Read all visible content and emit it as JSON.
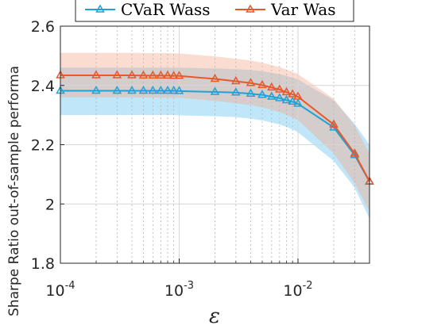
{
  "chart_data": {
    "type": "line",
    "xscale": "log",
    "xlim": [
      0.0001,
      0.04
    ],
    "ylim": [
      1.8,
      2.6
    ],
    "xlabel": "ε",
    "ylabel": "Sharpe Ratio out-of-sample performa",
    "xtick_labels": [
      {
        "value": 0.0001,
        "mantissa": "10",
        "exp": "-4"
      },
      {
        "value": 0.001,
        "mantissa": "10",
        "exp": "-3"
      },
      {
        "value": 0.01,
        "mantissa": "10",
        "exp": "-2"
      }
    ],
    "ytick_labels": [
      "1.8",
      "2",
      "2.2",
      "2.4",
      "2.6"
    ],
    "yticks": [
      1.8,
      2.0,
      2.2,
      2.4,
      2.6
    ],
    "grid": true,
    "legend_position": "top",
    "x": [
      0.0001,
      0.0002,
      0.0003,
      0.0004,
      0.0005,
      0.0006,
      0.0007,
      0.0008,
      0.0009,
      0.001,
      0.002,
      0.003,
      0.004,
      0.005,
      0.006,
      0.007,
      0.008,
      0.009,
      0.01,
      0.02,
      0.03,
      0.04
    ],
    "series": [
      {
        "name": "CVaR Wass",
        "color": "#1fa2d8",
        "band_color": "#5fc3f1",
        "values": [
          2.382,
          2.382,
          2.382,
          2.382,
          2.382,
          2.382,
          2.382,
          2.382,
          2.382,
          2.381,
          2.378,
          2.376,
          2.372,
          2.368,
          2.362,
          2.357,
          2.35,
          2.345,
          2.338,
          2.258,
          2.165,
          2.075
        ],
        "lower": [
          2.3,
          2.3,
          2.3,
          2.3,
          2.3,
          2.3,
          2.3,
          2.3,
          2.3,
          2.299,
          2.296,
          2.293,
          2.288,
          2.282,
          2.275,
          2.268,
          2.26,
          2.252,
          2.242,
          2.145,
          2.055,
          1.95
        ],
        "upper": [
          2.46,
          2.46,
          2.46,
          2.46,
          2.46,
          2.46,
          2.46,
          2.46,
          2.46,
          2.46,
          2.457,
          2.455,
          2.452,
          2.448,
          2.443,
          2.438,
          2.432,
          2.426,
          2.42,
          2.35,
          2.27,
          2.2
        ]
      },
      {
        "name": "Var Was",
        "color": "#e8582a",
        "band_color": "#f4a889",
        "values": [
          2.434,
          2.434,
          2.434,
          2.434,
          2.433,
          2.433,
          2.433,
          2.433,
          2.432,
          2.432,
          2.422,
          2.414,
          2.408,
          2.401,
          2.393,
          2.386,
          2.377,
          2.37,
          2.362,
          2.268,
          2.17,
          2.076
        ],
        "lower": [
          2.36,
          2.36,
          2.36,
          2.36,
          2.359,
          2.359,
          2.359,
          2.359,
          2.358,
          2.358,
          2.348,
          2.34,
          2.333,
          2.326,
          2.318,
          2.31,
          2.3,
          2.292,
          2.283,
          2.17,
          2.07,
          1.975
        ],
        "upper": [
          2.51,
          2.51,
          2.51,
          2.51,
          2.509,
          2.509,
          2.509,
          2.509,
          2.508,
          2.508,
          2.498,
          2.49,
          2.484,
          2.477,
          2.469,
          2.462,
          2.454,
          2.446,
          2.438,
          2.355,
          2.265,
          2.17
        ]
      }
    ]
  }
}
